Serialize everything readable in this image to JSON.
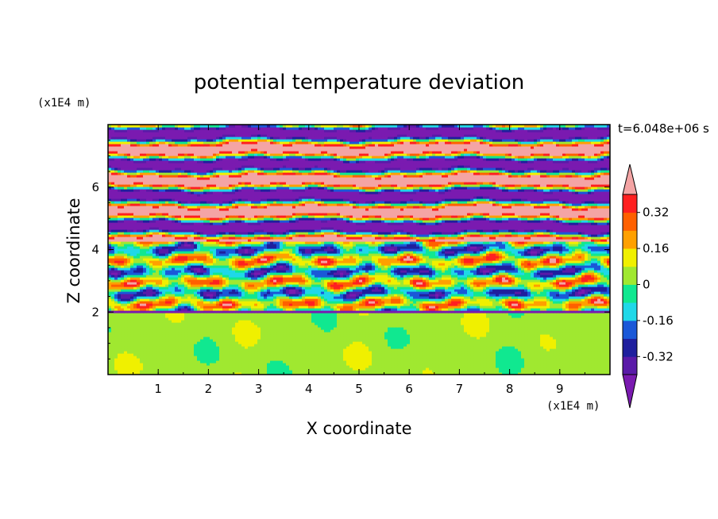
{
  "chart_data": {
    "type": "heatmap",
    "title": "potential temperature deviation",
    "xlabel": "X coordinate",
    "ylabel": "Z coordinate",
    "x_unit": "(x1E4 m)",
    "y_unit": "(x1E4 m)",
    "time_label": "t=6.048e+06 s",
    "xlim": [
      0,
      10
    ],
    "ylim": [
      0,
      8
    ],
    "x_ticks": [
      "1",
      "2",
      "3",
      "4",
      "5",
      "6",
      "7",
      "8",
      "9"
    ],
    "y_ticks": [
      "2",
      "4",
      "6"
    ],
    "colorbar": {
      "labels": [
        "0.32",
        "0.16",
        "0",
        "-0.16",
        "-0.32"
      ],
      "label_values": [
        0.32,
        0.16,
        0,
        -0.16,
        -0.32
      ],
      "levels": [
        -0.4,
        -0.32,
        -0.24,
        -0.16,
        -0.08,
        0,
        0.08,
        0.16,
        0.24,
        0.32,
        0.4
      ],
      "colors": [
        "#5a1aa8",
        "#1f1f9e",
        "#1a58d8",
        "#1fd8e8",
        "#10e890",
        "#a0e830",
        "#f0f000",
        "#ffa000",
        "#ff6000",
        "#ff2020"
      ],
      "under_color": "#7a1ab0",
      "over_color": "#f4a4a4",
      "extend": "both"
    },
    "regions": [
      {
        "z_range": [
          0,
          1.95
        ],
        "description_values": [
          0,
          0.08
        ],
        "pattern": "lower layer alternating light-green and green patches"
      },
      {
        "z_range": [
          1.95,
          4.3
        ],
        "description_values": [
          -0.2,
          0.3
        ],
        "pattern": "turbulent mixed band"
      },
      {
        "z_range": [
          4.3,
          8
        ],
        "description_values": [
          -0.45,
          0.45
        ],
        "pattern": "alternating pink and purple horizontal layers"
      }
    ]
  }
}
